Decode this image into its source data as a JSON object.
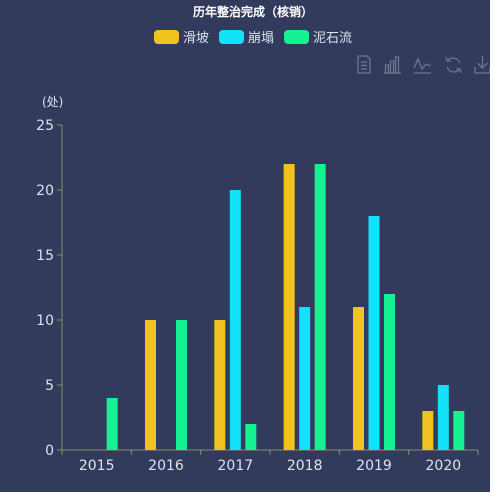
{
  "colors": {
    "background": "#323b5b",
    "axis": "#8f8b63",
    "tick_label": "#dde2ee",
    "title": "#ffffff",
    "toolbox": "#6e7591"
  },
  "toolbox": {
    "icons": [
      "data-view-icon",
      "bar-chart-icon",
      "line-chart-icon",
      "restore-icon",
      "save-image-icon"
    ]
  },
  "chart_data": {
    "type": "bar",
    "title": "历年整治完成（核销）",
    "ylabel": "(处)",
    "xlabel": "",
    "categories": [
      "2015",
      "2016",
      "2017",
      "2018",
      "2019",
      "2020"
    ],
    "ylim": [
      0,
      25
    ],
    "yticks": [
      0,
      5,
      10,
      15,
      20,
      25
    ],
    "grid": false,
    "legend_position": "top-center",
    "series": [
      {
        "name": "滑坡",
        "color": "#f2c31f",
        "values": [
          0,
          10,
          10,
          22,
          11,
          3
        ]
      },
      {
        "name": "崩塌",
        "color": "#12e1f9",
        "values": [
          0,
          0,
          20,
          11,
          18,
          5
        ]
      },
      {
        "name": "泥石流",
        "color": "#14f292",
        "values": [
          4,
          10,
          2,
          22,
          12,
          3
        ]
      }
    ]
  }
}
